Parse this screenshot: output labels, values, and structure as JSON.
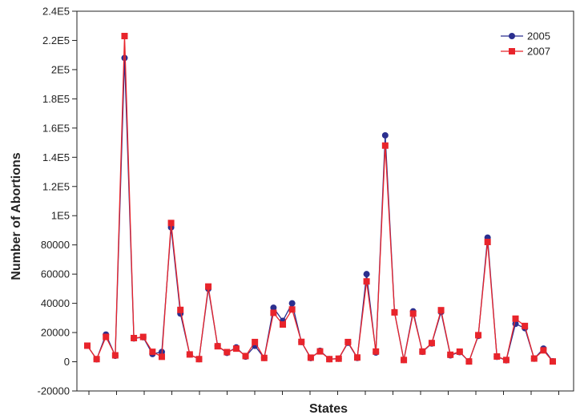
{
  "chart_data": {
    "type": "line",
    "title": "",
    "xlabel": "States",
    "ylabel": "Number of Abortions",
    "ylim": [
      -20000,
      240000
    ],
    "yticks": [
      {
        "value": 240000,
        "label": "2.4E5"
      },
      {
        "value": 220000,
        "label": "2.2E5"
      },
      {
        "value": 200000,
        "label": "2E5"
      },
      {
        "value": 180000,
        "label": "1.8E5"
      },
      {
        "value": 160000,
        "label": "1.6E5"
      },
      {
        "value": 140000,
        "label": "1.4E5"
      },
      {
        "value": 120000,
        "label": "1.2E5"
      },
      {
        "value": 100000,
        "label": "1E5"
      },
      {
        "value": 80000,
        "label": "80000"
      },
      {
        "value": 60000,
        "label": "60000"
      },
      {
        "value": 40000,
        "label": "40000"
      },
      {
        "value": 20000,
        "label": "20000"
      },
      {
        "value": 0,
        "label": "0"
      },
      {
        "value": -20000,
        "label": "-20000"
      }
    ],
    "grid": false,
    "legend_position": "top-right",
    "series": [
      {
        "name": "2005",
        "color": "#2b2f8f",
        "marker": "circle",
        "values": [
          11000,
          1700,
          18600,
          4100,
          208000,
          16000,
          16800,
          5300,
          6700,
          92000,
          33000,
          5000,
          1800,
          50000,
          10800,
          6100,
          9800,
          3500,
          10900,
          2600,
          37000,
          28000,
          40000,
          13500,
          2500,
          7500,
          1800,
          2100,
          13000,
          2600,
          60000,
          6300,
          155000,
          34000,
          1200,
          34500,
          6800,
          12500,
          34000,
          4400,
          6600,
          200,
          17700,
          85000,
          3400,
          1000,
          26000,
          23000,
          2100,
          9000,
          300
        ]
      },
      {
        "name": "2007",
        "color": "#e8242b",
        "marker": "square",
        "values": [
          11000,
          1800,
          17000,
          4400,
          223000,
          16200,
          17000,
          6800,
          3400,
          95000,
          35500,
          5000,
          1800,
          51500,
          10600,
          6600,
          9000,
          3900,
          13500,
          2600,
          33500,
          25500,
          35800,
          13600,
          2800,
          7100,
          1800,
          2100,
          13500,
          2900,
          55000,
          7000,
          148000,
          33800,
          1200,
          33000,
          7000,
          12800,
          35300,
          4800,
          6900,
          200,
          18200,
          82000,
          3600,
          1200,
          29500,
          24500,
          2200,
          7800,
          200
        ]
      }
    ]
  }
}
